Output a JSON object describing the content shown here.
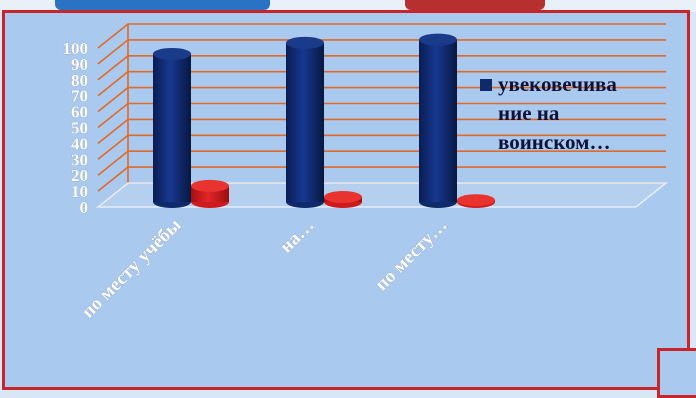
{
  "chart_data": {
    "type": "bar",
    "categories": [
      "по месту учёбы",
      "на…",
      "по месту…"
    ],
    "series": [
      {
        "name": "увековечивание на воинском…",
        "values": [
          95,
          102,
          104
        ],
        "color": "#0f2a6b"
      },
      {
        "name": "",
        "values": [
          12,
          5,
          3
        ],
        "color": "#d0191c"
      }
    ],
    "ylim": [
      0,
      100
    ],
    "yticks": [
      0,
      10,
      20,
      30,
      40,
      50,
      60,
      70,
      80,
      90,
      100
    ],
    "grid": true,
    "grid_color": "#e06a28",
    "legend": {
      "label": "увеко­вечива\nние на\nвоинском…",
      "position": "right"
    }
  }
}
